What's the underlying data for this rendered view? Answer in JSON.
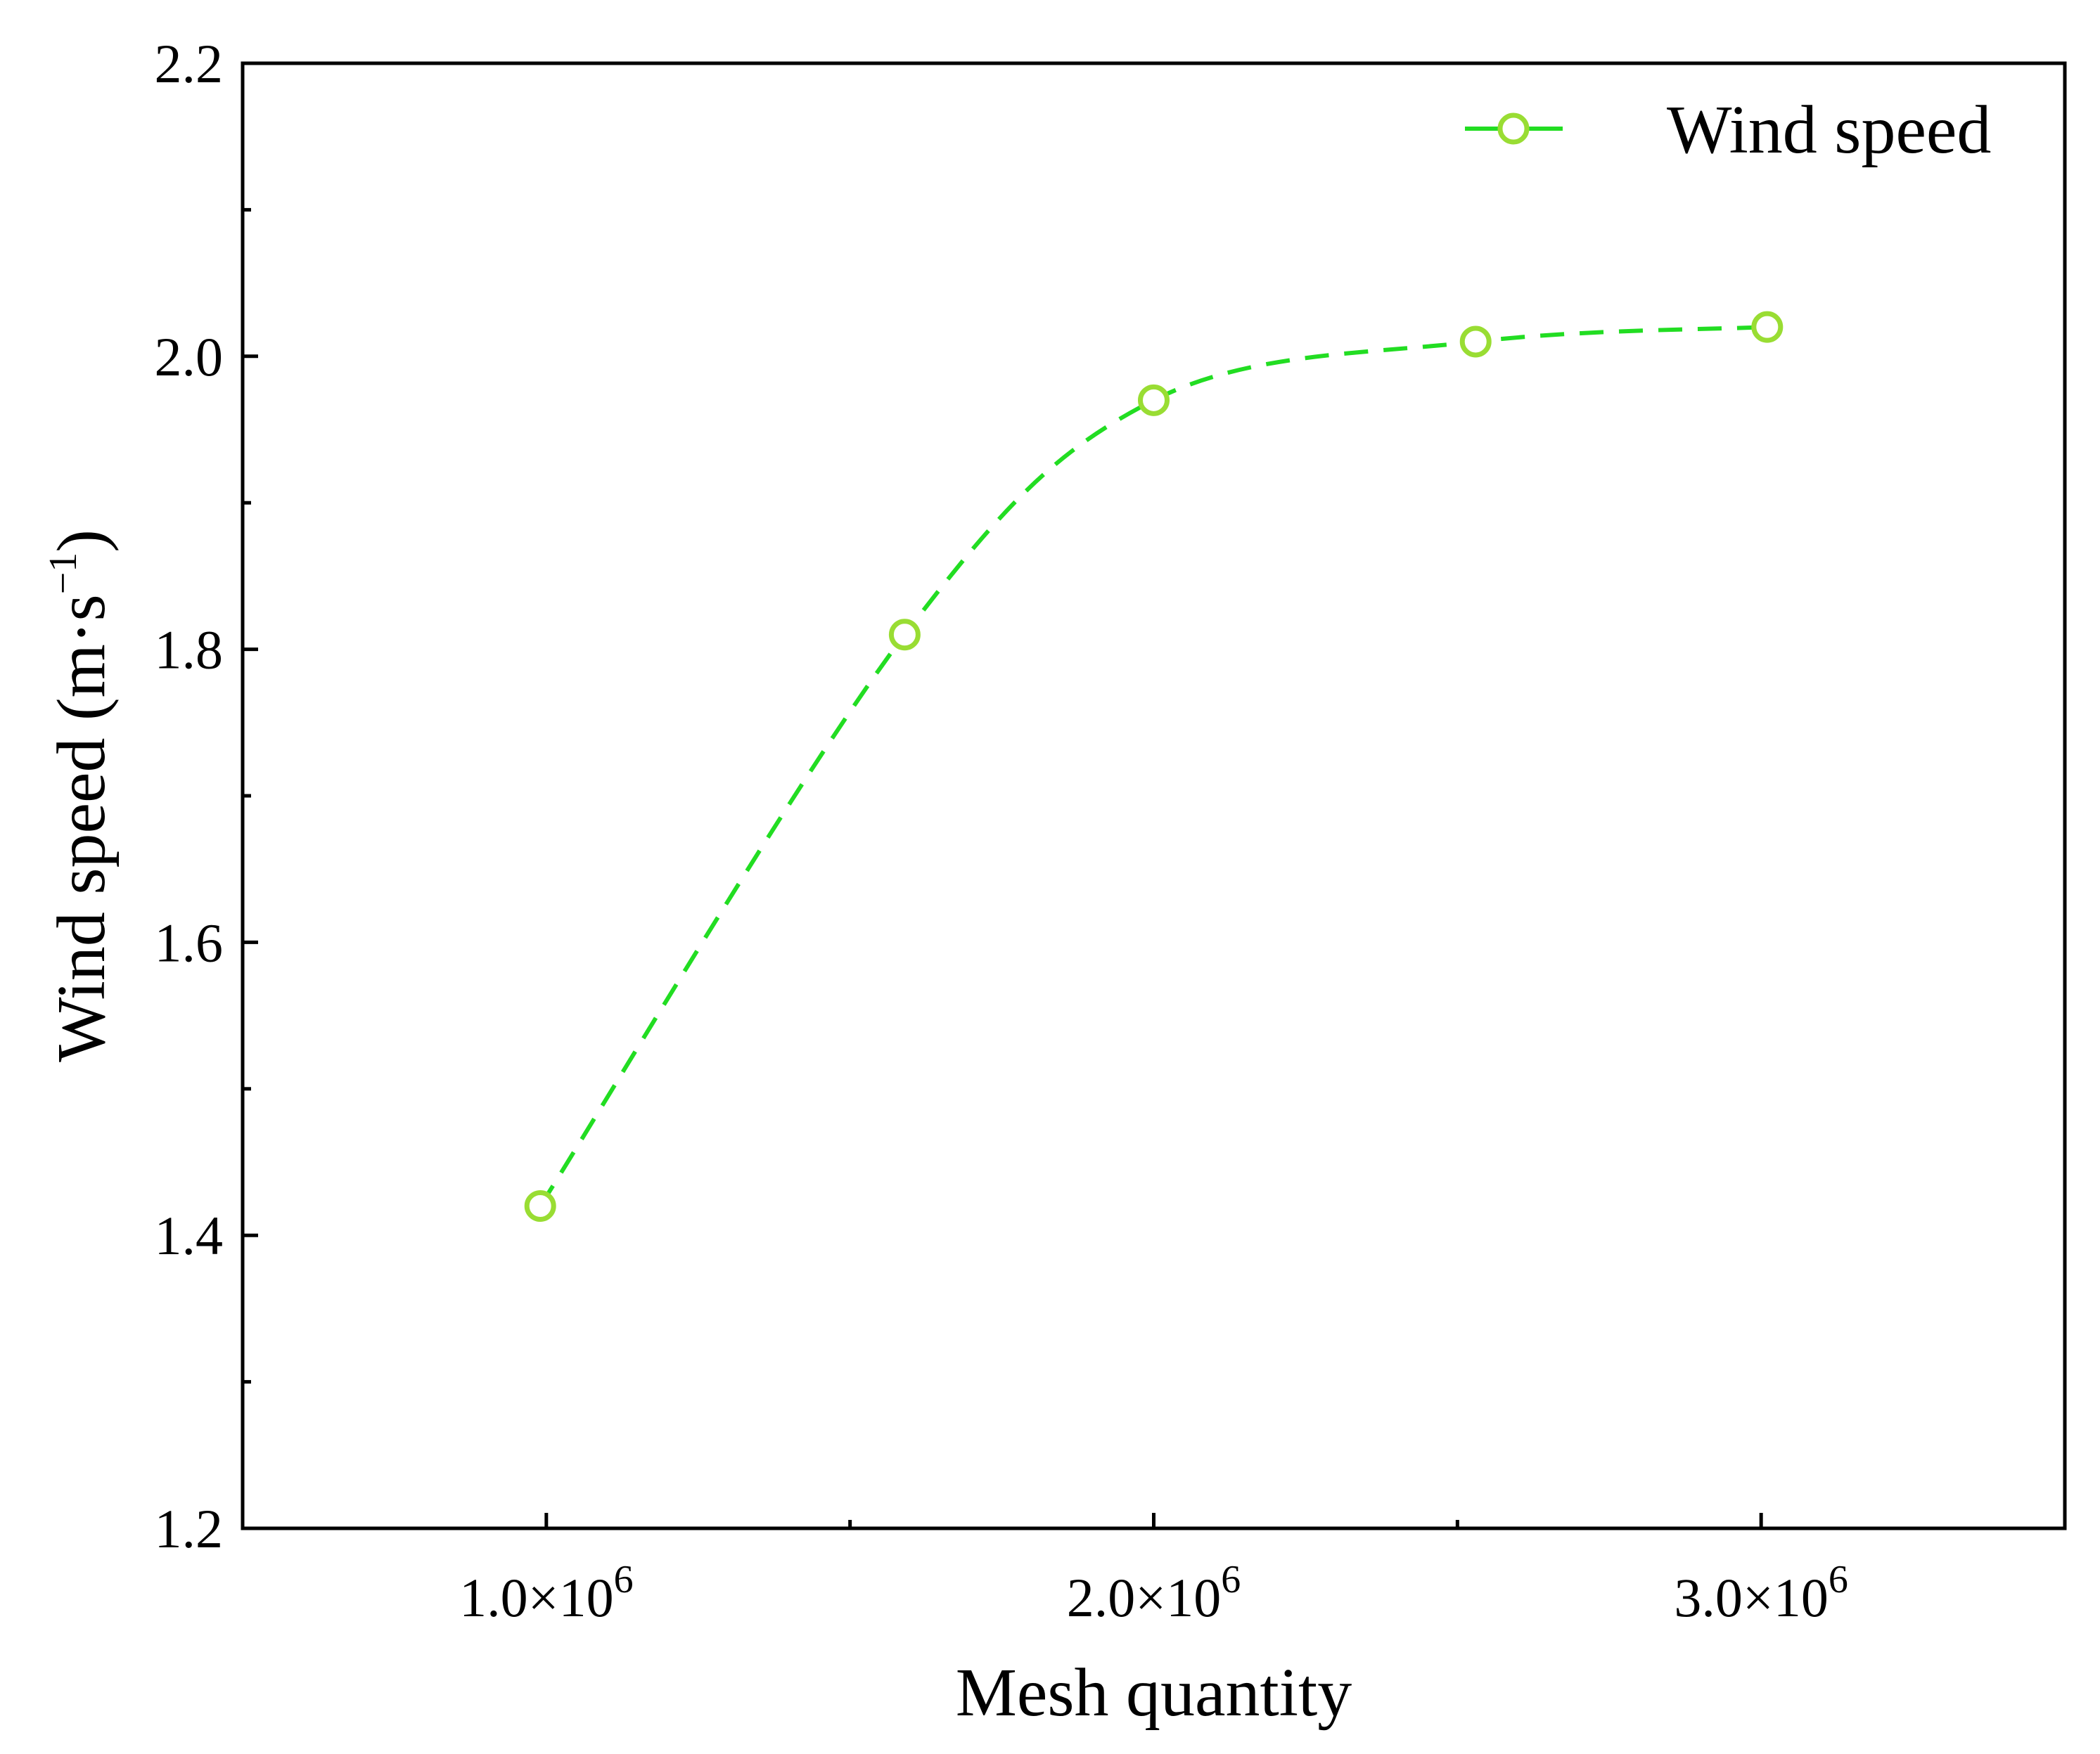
{
  "chart_data": {
    "type": "line",
    "title": "",
    "xlabel": "Mesh quantity",
    "ylabel": "Wind speed (m·s",
    "ylabel_sup": "−1",
    "ylabel_close": ")",
    "xlim": [
      500000,
      3500000
    ],
    "ylim": [
      1.2,
      2.2
    ],
    "x_ticks": [
      {
        "value": 1000000,
        "mantissa": "1.0×10",
        "exponent": "6"
      },
      {
        "value": 2000000,
        "mantissa": "2.0×10",
        "exponent": "6"
      },
      {
        "value": 3000000,
        "mantissa": "3.0×10",
        "exponent": "6"
      }
    ],
    "x_minor_ticks": [
      1500000,
      2500000
    ],
    "y_ticks": [
      {
        "value": 1.2,
        "label": "1.2"
      },
      {
        "value": 1.4,
        "label": "1.4"
      },
      {
        "value": 1.6,
        "label": "1.6"
      },
      {
        "value": 1.8,
        "label": "1.8"
      },
      {
        "value": 2.0,
        "label": "2.0"
      },
      {
        "value": 2.2,
        "label": "2.2"
      }
    ],
    "y_minor_ticks": [
      1.3,
      1.5,
      1.7,
      1.9,
      2.1
    ],
    "grid": false,
    "legend_position": "top-right",
    "series": [
      {
        "name": "Wind speed",
        "color": "#22dd22",
        "marker_color": "#99dd33",
        "line_style": "dashed",
        "marker": "open-circle",
        "x": [
          990000,
          1590000,
          2000000,
          2530000,
          3010000
        ],
        "y": [
          1.42,
          1.81,
          1.97,
          2.01,
          2.02
        ]
      }
    ]
  }
}
